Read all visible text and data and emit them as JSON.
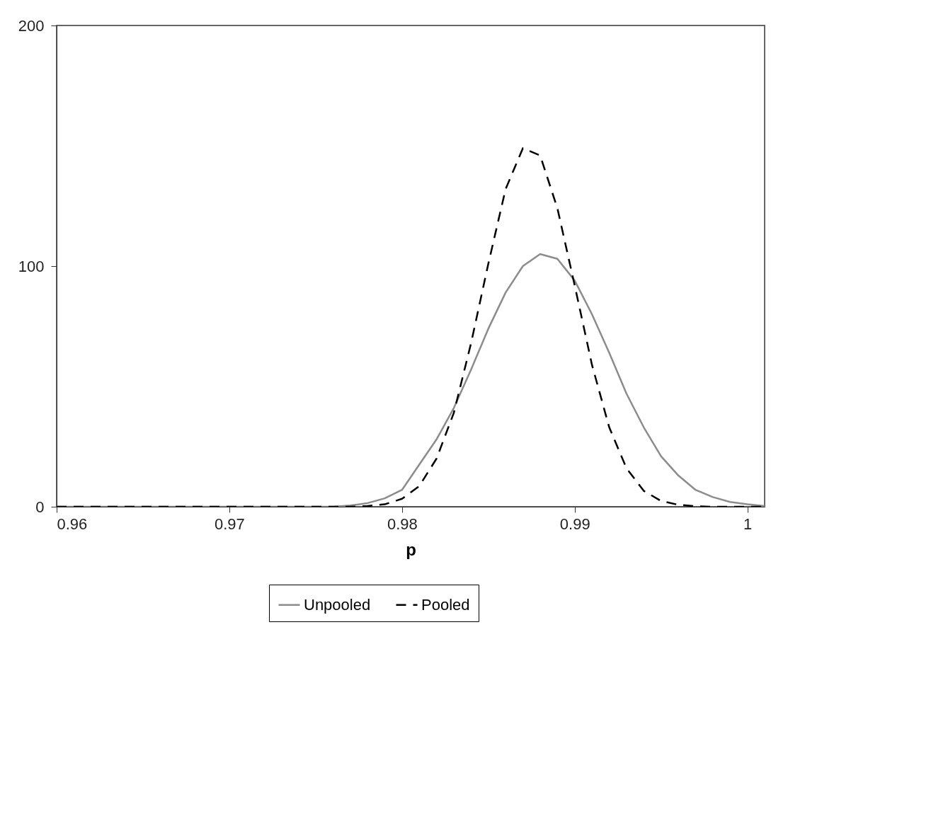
{
  "chart_data": {
    "type": "line",
    "xlabel": "p",
    "xlim": [
      0.96,
      1.001
    ],
    "xticks": [
      0.96,
      0.97,
      0.98,
      0.99,
      1
    ],
    "ylim": [
      0,
      200
    ],
    "yticks": [
      0,
      100,
      200
    ],
    "grid": false,
    "legend": "bottom",
    "series": [
      {
        "name": "Unpooled",
        "color": "#8c8c8c",
        "line_style": "solid",
        "x": [
          0.96,
          0.97,
          0.976,
          0.977,
          0.978,
          0.979,
          0.98,
          0.981,
          0.982,
          0.983,
          0.984,
          0.985,
          0.986,
          0.987,
          0.988,
          0.989,
          0.99,
          0.991,
          0.992,
          0.993,
          0.994,
          0.995,
          0.996,
          0.997,
          0.998,
          0.999,
          1.0,
          1.001
        ],
        "values": [
          0,
          0,
          0,
          0.5,
          1.5,
          3.5,
          7,
          17.5,
          28,
          41,
          57,
          74,
          89,
          100,
          105,
          103,
          94,
          80,
          64,
          47,
          33,
          21,
          13,
          7,
          4,
          2,
          1,
          0.3
        ]
      },
      {
        "name": "Pooled",
        "color": "#000000",
        "line_style": "dashed",
        "x": [
          0.96,
          0.97,
          0.977,
          0.978,
          0.979,
          0.98,
          0.981,
          0.982,
          0.983,
          0.984,
          0.985,
          0.986,
          0.987,
          0.988,
          0.989,
          0.99,
          0.991,
          0.992,
          0.993,
          0.994,
          0.995,
          0.996,
          0.997,
          0.998,
          1.0,
          1.001
        ],
        "values": [
          0,
          0,
          0,
          0.3,
          1,
          3.3,
          8.6,
          20,
          39,
          68,
          101,
          132,
          149,
          146,
          124,
          92,
          59,
          33,
          16,
          6.6,
          2.4,
          0.8,
          0.2,
          0,
          0,
          0
        ]
      }
    ]
  }
}
